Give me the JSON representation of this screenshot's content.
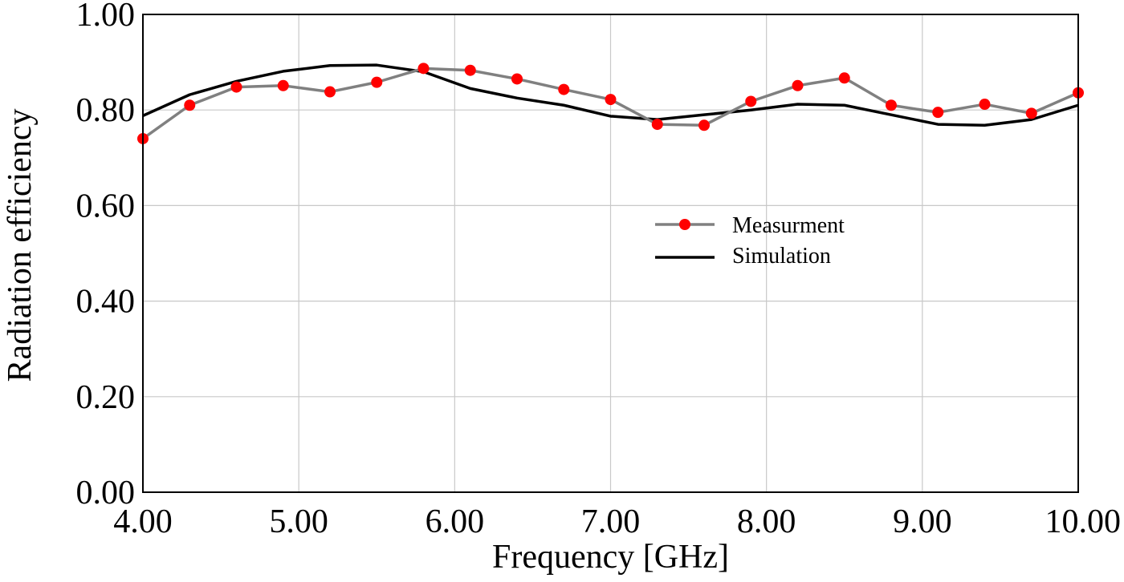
{
  "chart_data": {
    "type": "line",
    "title": "",
    "xlabel": "Frequency [GHz]",
    "ylabel": "Radiation efficiency",
    "xlim": [
      4.0,
      10.0
    ],
    "ylim": [
      0.0,
      1.0
    ],
    "xticks": [
      4.0,
      5.0,
      6.0,
      7.0,
      8.0,
      9.0,
      10.0
    ],
    "xtick_labels": [
      "4.00",
      "5.00",
      "6.00",
      "7.00",
      "8.00",
      "9.00",
      "10.00"
    ],
    "yticks": [
      0.0,
      0.2,
      0.4,
      0.6,
      0.8,
      1.0
    ],
    "ytick_labels": [
      "0.00",
      "0.20",
      "0.40",
      "0.60",
      "0.80",
      "1.00"
    ],
    "grid": true,
    "legend_position": "center-right",
    "series": [
      {
        "name": "Measurment",
        "line_color": "#808080",
        "marker_color": "#ff0000",
        "marker": "circle",
        "x": [
          4.0,
          4.3,
          4.6,
          4.9,
          5.2,
          5.5,
          5.8,
          6.1,
          6.4,
          6.7,
          7.0,
          7.3,
          7.6,
          7.9,
          8.2,
          8.5,
          8.8,
          9.1,
          9.4,
          9.7,
          10.0
        ],
        "y": [
          0.74,
          0.81,
          0.848,
          0.851,
          0.838,
          0.858,
          0.887,
          0.883,
          0.865,
          0.843,
          0.822,
          0.77,
          0.768,
          0.818,
          0.851,
          0.867,
          0.81,
          0.795,
          0.812,
          0.793,
          0.836
        ]
      },
      {
        "name": "Simulation",
        "line_color": "#000000",
        "marker": "none",
        "x": [
          4.0,
          4.3,
          4.6,
          4.9,
          5.2,
          5.5,
          5.8,
          6.1,
          6.4,
          6.7,
          7.0,
          7.3,
          7.6,
          7.9,
          8.2,
          8.5,
          8.8,
          9.1,
          9.4,
          9.7,
          10.0
        ],
        "y": [
          0.788,
          0.832,
          0.86,
          0.881,
          0.893,
          0.894,
          0.88,
          0.845,
          0.825,
          0.81,
          0.787,
          0.78,
          0.79,
          0.8,
          0.812,
          0.81,
          0.79,
          0.77,
          0.768,
          0.78,
          0.81
        ]
      }
    ]
  }
}
